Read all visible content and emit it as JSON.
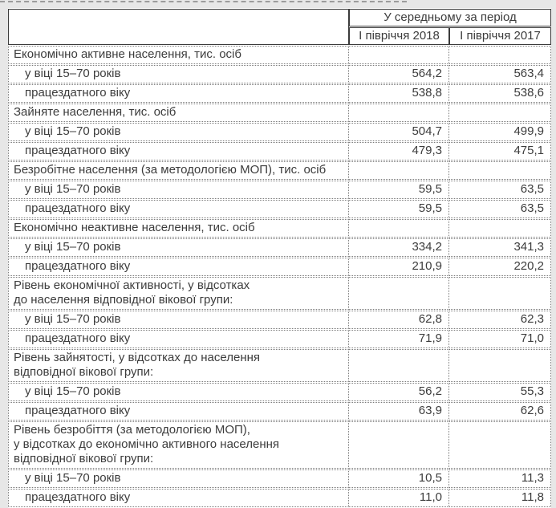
{
  "colors": {
    "page_background": "#e7e7e7",
    "cell_background": "#ffffff",
    "header_border_solid": "#3b3b3b",
    "body_border_dotted": "#7b7b7b",
    "text": "#3c3c3c",
    "top_divider_dashed": "#9c9c9c"
  },
  "table": {
    "header": {
      "group_label": "У середньому за період",
      "columns": [
        "І півріччя 2018",
        "І півріччя 2017"
      ]
    },
    "rows": [
      {
        "type": "section",
        "label": "Економічно активне населення, тис. осіб",
        "v2018": "",
        "v2017": ""
      },
      {
        "type": "sub",
        "label": "у віці 15–70 років",
        "v2018": "564,2",
        "v2017": "563,4"
      },
      {
        "type": "sub",
        "label": "працездатного віку",
        "v2018": "538,8",
        "v2017": "538,6"
      },
      {
        "type": "section",
        "label": "Зайняте населення, тис. осіб",
        "v2018": "",
        "v2017": ""
      },
      {
        "type": "sub",
        "label": "у віці 15–70 років",
        "v2018": "504,7",
        "v2017": "499,9"
      },
      {
        "type": "sub",
        "label": "працездатного віку",
        "v2018": "479,3",
        "v2017": "475,1"
      },
      {
        "type": "section",
        "label": "Безробітне населення (за методологією МОП), тис. осіб",
        "v2018": "",
        "v2017": ""
      },
      {
        "type": "sub",
        "label": "у віці 15–70 років",
        "v2018": "59,5",
        "v2017": "63,5"
      },
      {
        "type": "sub",
        "label": "працездатного віку",
        "v2018": "59,5",
        "v2017": "63,5"
      },
      {
        "type": "section",
        "label": "Економічно неактивне населення, тис. осіб",
        "v2018": "",
        "v2017": ""
      },
      {
        "type": "sub",
        "label": "у віці 15–70 років",
        "v2018": "334,2",
        "v2017": "341,3"
      },
      {
        "type": "sub",
        "label": "працездатного віку",
        "v2018": "210,9",
        "v2017": "220,2"
      },
      {
        "type": "section",
        "label": "Рівень економічної активності, у відсотках\nдо населення відповідної вікової групи:",
        "v2018": "",
        "v2017": ""
      },
      {
        "type": "sub",
        "label": "у віці 15–70 років",
        "v2018": "62,8",
        "v2017": "62,3"
      },
      {
        "type": "sub",
        "label": "працездатного віку",
        "v2018": "71,9",
        "v2017": "71,0"
      },
      {
        "type": "section",
        "label": "Рівень зайнятості, у відсотках до населення\nвідповідної вікової групи:",
        "v2018": "",
        "v2017": ""
      },
      {
        "type": "sub",
        "label": "у віці 15–70 років",
        "v2018": "56,2",
        "v2017": "55,3"
      },
      {
        "type": "sub",
        "label": "працездатного віку",
        "v2018": "63,9",
        "v2017": "62,6"
      },
      {
        "type": "section",
        "label": "Рівень безробіття (за методологією МОП),\nу відсотках до економічно активного населення\nвідповідної вікової групи:",
        "v2018": "",
        "v2017": ""
      },
      {
        "type": "sub",
        "label": "у віці 15–70 років",
        "v2018": "10,5",
        "v2017": "11,3"
      },
      {
        "type": "sub",
        "label": "працездатного віку",
        "v2018": "11,0",
        "v2017": "11,8"
      }
    ]
  }
}
